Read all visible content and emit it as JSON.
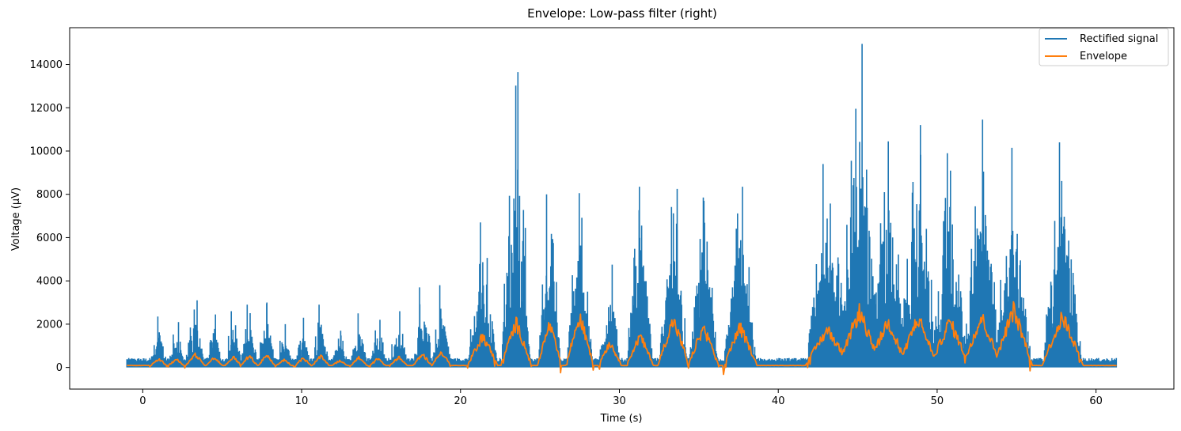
{
  "chart_data": {
    "type": "line",
    "title": "Envelope: Low-pass filter (right)",
    "xlabel": "Time (s)",
    "ylabel": "Voltage (μV)",
    "xlim": [
      -4.6,
      64.9
    ],
    "ylim": [
      -1000,
      15700
    ],
    "xticks": [
      0,
      10,
      20,
      30,
      40,
      50,
      60
    ],
    "yticks": [
      0,
      2000,
      4000,
      6000,
      8000,
      10000,
      12000,
      14000
    ],
    "grid": false,
    "legend_position": "top-right",
    "x_range": [
      -1.0,
      61.3
    ],
    "baseline_rectified": 350,
    "baseline_envelope": 90,
    "bursts": [
      {
        "t": 1.0,
        "peak": 2350,
        "width": 0.55
      },
      {
        "t": 2.1,
        "peak": 2100,
        "width": 0.55
      },
      {
        "t": 3.3,
        "peak": 3100,
        "width": 0.6
      },
      {
        "t": 4.5,
        "peak": 2450,
        "width": 0.55
      },
      {
        "t": 5.7,
        "peak": 2600,
        "width": 0.55
      },
      {
        "t": 6.7,
        "peak": 2900,
        "width": 0.55
      },
      {
        "t": 7.8,
        "peak": 3000,
        "width": 0.55
      },
      {
        "t": 8.9,
        "peak": 2000,
        "width": 0.55
      },
      {
        "t": 10.1,
        "peak": 2300,
        "width": 0.55
      },
      {
        "t": 11.2,
        "peak": 2900,
        "width": 0.55
      },
      {
        "t": 12.4,
        "peak": 1700,
        "width": 0.55
      },
      {
        "t": 13.6,
        "peak": 2500,
        "width": 0.55
      },
      {
        "t": 14.8,
        "peak": 2200,
        "width": 0.55
      },
      {
        "t": 16.1,
        "peak": 2600,
        "width": 0.6
      },
      {
        "t": 17.6,
        "peak": 3700,
        "width": 0.6
      },
      {
        "t": 18.8,
        "peak": 3800,
        "width": 0.6
      },
      {
        "t": 21.4,
        "peak": 6700,
        "width": 0.9
      },
      {
        "t": 23.5,
        "peak": 13650,
        "width": 0.9
      },
      {
        "t": 25.6,
        "peak": 8000,
        "width": 0.7
      },
      {
        "t": 27.5,
        "peak": 8050,
        "width": 0.8
      },
      {
        "t": 29.4,
        "peak": 4750,
        "width": 0.7
      },
      {
        "t": 31.3,
        "peak": 8350,
        "width": 0.8
      },
      {
        "t": 33.4,
        "peak": 8250,
        "width": 0.9
      },
      {
        "t": 35.3,
        "peak": 7850,
        "width": 0.9
      },
      {
        "t": 37.6,
        "peak": 8350,
        "width": 1.0
      },
      {
        "t": 43.1,
        "peak": 9400,
        "width": 1.3
      },
      {
        "t": 45.1,
        "peak": 14950,
        "width": 1.2
      },
      {
        "t": 46.9,
        "peak": 10450,
        "width": 1.1
      },
      {
        "t": 48.8,
        "peak": 11200,
        "width": 1.1
      },
      {
        "t": 50.8,
        "peak": 9900,
        "width": 1.1
      },
      {
        "t": 52.8,
        "peak": 11450,
        "width": 1.1
      },
      {
        "t": 54.8,
        "peak": 10150,
        "width": 1.1
      },
      {
        "t": 57.9,
        "peak": 10400,
        "width": 1.2
      }
    ],
    "envelope_peaks": [
      480,
      450,
      700,
      520,
      560,
      620,
      640,
      420,
      500,
      600,
      380,
      530,
      470,
      560,
      720,
      850,
      1700,
      2400,
      2300,
      2750,
      1350,
      1700,
      2550,
      2150,
      2150,
      2050,
      3000,
      2500,
      2700,
      2500,
      2700,
      3100,
      2750
    ],
    "series": [
      {
        "name": "Rectified signal",
        "color": "#1f77b4"
      },
      {
        "name": "Envelope",
        "color": "#ff7f0e"
      }
    ]
  }
}
